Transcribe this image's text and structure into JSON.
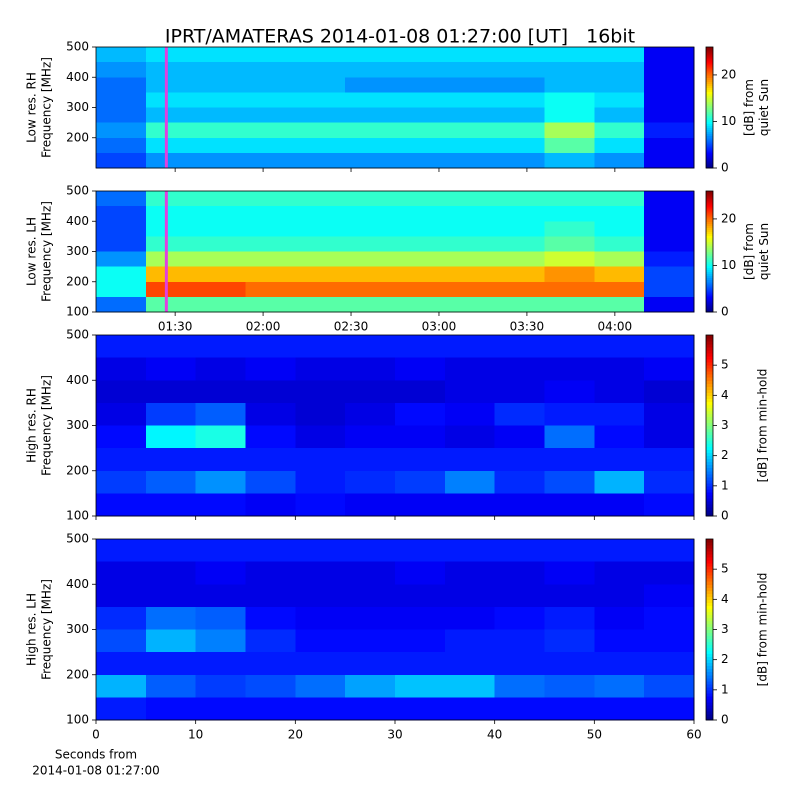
{
  "title": "IPRT/AMATERAS 2014-01-08 01:27:00 [UT]   16bit",
  "chart_data": [
    {
      "type": "heatmap",
      "ylabel": [
        "Low res. RH",
        "Frequency [MHz]"
      ],
      "xlim": [
        1.05,
        4.45
      ],
      "xticks": [
        {
          "value": 1.5,
          "label": "01:30"
        },
        {
          "value": 2,
          "label": "02:00"
        },
        {
          "value": 2.5,
          "label": "02:30"
        },
        {
          "value": 3,
          "label": "03:00"
        },
        {
          "value": 3.5,
          "label": "03:30"
        },
        {
          "value": 4,
          "label": "04:00"
        }
      ],
      "show_xtick_labels": false,
      "ylim": [
        100,
        500
      ],
      "yticks": [
        200,
        300,
        400,
        500
      ],
      "zlim": [
        0,
        26
      ],
      "zticks": [
        0,
        10,
        20
      ],
      "zlabel": [
        "[dB] from",
        "quiet Sun"
      ],
      "colormap": "jet",
      "marker_x": 1.45,
      "marker_color": "#e040e0",
      "z": [
        [
          8,
          9,
          9,
          9,
          9,
          9,
          9,
          9,
          9,
          9,
          9,
          3
        ],
        [
          7,
          8,
          8,
          8,
          8,
          8,
          8,
          8,
          8,
          8,
          8,
          3
        ],
        [
          6,
          8,
          8,
          8,
          8,
          7,
          7,
          7,
          7,
          8,
          8,
          3
        ],
        [
          6,
          9,
          9,
          9,
          9,
          9,
          9,
          9,
          9,
          10,
          9,
          3
        ],
        [
          6,
          8,
          8,
          8,
          8,
          8,
          8,
          8,
          8,
          10,
          8,
          3
        ],
        [
          7,
          11,
          11,
          11,
          11,
          11,
          11,
          11,
          11,
          14,
          11,
          4
        ],
        [
          6,
          9,
          9,
          9,
          9,
          9,
          9,
          9,
          9,
          12,
          9,
          3
        ],
        [
          5,
          7,
          7,
          7,
          7,
          7,
          7,
          7,
          7,
          8,
          7,
          3
        ]
      ]
    },
    {
      "type": "heatmap",
      "ylabel": [
        "Low res. LH",
        "Frequency [MHz]"
      ],
      "xlim": [
        1.05,
        4.45
      ],
      "xticks": [
        {
          "value": 1.5,
          "label": "01:30"
        },
        {
          "value": 2,
          "label": "02:00"
        },
        {
          "value": 2.5,
          "label": "02:30"
        },
        {
          "value": 3,
          "label": "03:00"
        },
        {
          "value": 3.5,
          "label": "03:30"
        },
        {
          "value": 4,
          "label": "04:00"
        }
      ],
      "show_xtick_labels": true,
      "ylim": [
        100,
        500
      ],
      "yticks": [
        100,
        200,
        300,
        400,
        500
      ],
      "zlim": [
        0,
        26
      ],
      "zticks": [
        0,
        10,
        20
      ],
      "zlabel": [
        "[dB] from",
        "quiet Sun"
      ],
      "colormap": "jet",
      "marker_x": 1.45,
      "marker_color": "#e040e0",
      "z": [
        [
          6,
          11,
          11,
          11,
          11,
          11,
          11,
          11,
          11,
          11,
          11,
          3
        ],
        [
          5,
          10,
          10,
          10,
          10,
          10,
          10,
          10,
          10,
          10,
          10,
          3
        ],
        [
          5,
          10,
          10,
          10,
          10,
          10,
          10,
          10,
          10,
          11,
          10,
          3
        ],
        [
          5,
          11,
          11,
          11,
          11,
          11,
          11,
          11,
          11,
          12,
          11,
          3
        ],
        [
          7,
          14,
          14,
          14,
          14,
          14,
          14,
          14,
          14,
          15,
          14,
          4
        ],
        [
          10,
          18,
          18,
          18,
          18,
          18,
          18,
          18,
          18,
          19,
          18,
          5
        ],
        [
          10,
          21,
          21,
          20,
          20,
          20,
          20,
          20,
          20,
          20,
          20,
          5
        ],
        [
          6,
          12,
          12,
          12,
          12,
          12,
          12,
          12,
          12,
          12,
          12,
          3
        ]
      ]
    },
    {
      "type": "heatmap",
      "ylabel": [
        "High res. RH",
        "Frequency [MHz]"
      ],
      "xlim": [
        0,
        60
      ],
      "xticks": [
        0,
        10,
        20,
        30,
        40,
        50,
        60
      ],
      "show_xtick_labels": false,
      "ylim": [
        100,
        500
      ],
      "yticks": [
        100,
        200,
        300,
        400,
        500
      ],
      "zlim": [
        0,
        6
      ],
      "zticks": [
        0,
        1,
        2,
        3,
        4,
        5
      ],
      "zlabel": [
        "[dB] from min-hold"
      ],
      "colormap": "jet",
      "z": [
        [
          0.9,
          0.9,
          0.9,
          0.9,
          0.9,
          0.9,
          0.9,
          0.9,
          0.9,
          0.9,
          0.9,
          0.9
        ],
        [
          0.6,
          0.7,
          0.6,
          0.7,
          0.6,
          0.6,
          0.7,
          0.6,
          0.6,
          0.6,
          0.6,
          0.7
        ],
        [
          0.5,
          0.5,
          0.5,
          0.5,
          0.5,
          0.5,
          0.5,
          0.6,
          0.6,
          0.7,
          0.6,
          0.5
        ],
        [
          0.6,
          1.1,
          1.3,
          0.6,
          0.5,
          0.6,
          0.8,
          0.7,
          1.0,
          0.9,
          0.9,
          0.6
        ],
        [
          0.8,
          2.2,
          2.4,
          0.8,
          0.6,
          0.7,
          0.7,
          0.6,
          0.7,
          1.4,
          0.8,
          0.6
        ],
        [
          0.9,
          0.9,
          0.9,
          0.9,
          0.9,
          0.9,
          0.9,
          0.9,
          0.9,
          0.9,
          0.9,
          0.9
        ],
        [
          1.1,
          1.3,
          1.6,
          1.2,
          0.9,
          1.0,
          1.1,
          1.5,
          1.0,
          1.2,
          1.8,
          1.0
        ],
        [
          0.8,
          0.8,
          0.8,
          0.7,
          0.8,
          0.7,
          0.7,
          0.7,
          0.7,
          0.7,
          0.7,
          0.8
        ]
      ]
    },
    {
      "type": "heatmap",
      "ylabel": [
        "High res. LH",
        "Frequency [MHz]"
      ],
      "xlim": [
        0,
        60
      ],
      "xticks": [
        0,
        10,
        20,
        30,
        40,
        50,
        60
      ],
      "show_xtick_labels": true,
      "xlabel": [
        "Seconds from",
        "2014-01-08 01:27:00"
      ],
      "ylim": [
        100,
        500
      ],
      "yticks": [
        100,
        200,
        300,
        400,
        500
      ],
      "zlim": [
        0,
        6
      ],
      "zticks": [
        0,
        1,
        2,
        3,
        4,
        5
      ],
      "zlabel": [
        "[dB] from min-hold"
      ],
      "colormap": "jet",
      "z": [
        [
          0.9,
          0.9,
          0.9,
          0.9,
          0.9,
          0.9,
          0.9,
          0.9,
          0.9,
          0.9,
          0.9,
          0.9
        ],
        [
          0.6,
          0.6,
          0.7,
          0.6,
          0.6,
          0.6,
          0.7,
          0.6,
          0.6,
          0.7,
          0.6,
          0.6
        ],
        [
          0.6,
          0.6,
          0.6,
          0.6,
          0.6,
          0.6,
          0.6,
          0.6,
          0.6,
          0.6,
          0.6,
          0.7
        ],
        [
          1.0,
          1.4,
          1.3,
          0.8,
          0.7,
          0.7,
          0.7,
          0.7,
          0.8,
          0.9,
          0.7,
          0.8
        ],
        [
          1.2,
          1.8,
          1.5,
          1.0,
          0.8,
          0.8,
          0.8,
          0.9,
          0.9,
          1.0,
          0.8,
          0.8
        ],
        [
          0.9,
          0.9,
          0.9,
          0.9,
          0.9,
          0.9,
          0.9,
          0.9,
          0.9,
          0.9,
          0.9,
          0.9
        ],
        [
          1.8,
          1.3,
          1.1,
          1.2,
          1.4,
          1.7,
          1.9,
          1.9,
          1.4,
          1.3,
          1.4,
          1.2
        ],
        [
          0.9,
          0.8,
          0.8,
          0.8,
          0.8,
          0.8,
          0.8,
          0.8,
          0.8,
          0.8,
          0.8,
          0.8
        ]
      ]
    }
  ]
}
